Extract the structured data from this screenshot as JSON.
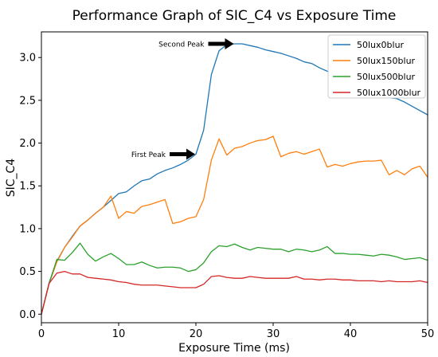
{
  "chart_data": {
    "type": "line",
    "title": "Performance Graph of SIC_C4 vs Exposure Time",
    "xlabel": "Exposure Time (ms)",
    "ylabel": "SIC_C4",
    "xlim": [
      0,
      50
    ],
    "ylim": [
      -0.1,
      3.3
    ],
    "xticks": [
      0,
      10,
      20,
      30,
      40,
      50
    ],
    "yticks": [
      0.0,
      0.5,
      1.0,
      1.5,
      2.0,
      2.5,
      3.0
    ],
    "ytick_labels": [
      "0.0",
      "0.5",
      "1.0",
      "1.5",
      "2.0",
      "2.5",
      "3.0"
    ],
    "grid": false,
    "legend_position": "top-right",
    "x": [
      0,
      1,
      2,
      3,
      4,
      5,
      6,
      7,
      8,
      9,
      10,
      11,
      12,
      13,
      14,
      15,
      16,
      17,
      18,
      19,
      20,
      21,
      22,
      23,
      24,
      25,
      26,
      27,
      28,
      29,
      30,
      31,
      32,
      33,
      34,
      35,
      36,
      37,
      38,
      39,
      40,
      41,
      42,
      43,
      44,
      45,
      46,
      47,
      48,
      49,
      50
    ],
    "series": [
      {
        "name": "50lux0blur",
        "color": "#1f77b4",
        "values": [
          0.0,
          0.37,
          0.62,
          0.78,
          0.91,
          1.03,
          1.1,
          1.18,
          1.25,
          1.33,
          1.41,
          1.43,
          1.5,
          1.56,
          1.58,
          1.64,
          1.68,
          1.71,
          1.75,
          1.8,
          1.87,
          2.15,
          2.8,
          3.08,
          3.15,
          3.16,
          3.16,
          3.14,
          3.12,
          3.09,
          3.07,
          3.05,
          3.02,
          2.99,
          2.95,
          2.93,
          2.88,
          2.84,
          2.8,
          2.76,
          2.72,
          2.69,
          2.65,
          2.61,
          2.57,
          2.53,
          2.52,
          2.48,
          2.43,
          2.38,
          2.33
        ]
      },
      {
        "name": "50lux150blur",
        "color": "#ff7f0e",
        "values": [
          0.0,
          0.36,
          0.61,
          0.78,
          0.9,
          1.03,
          1.1,
          1.18,
          1.25,
          1.38,
          1.12,
          1.2,
          1.18,
          1.26,
          1.28,
          1.31,
          1.34,
          1.06,
          1.08,
          1.12,
          1.14,
          1.34,
          1.8,
          2.05,
          1.86,
          1.94,
          1.96,
          2.0,
          2.03,
          2.04,
          2.08,
          1.84,
          1.88,
          1.9,
          1.87,
          1.9,
          1.93,
          1.72,
          1.75,
          1.73,
          1.76,
          1.78,
          1.79,
          1.79,
          1.8,
          1.63,
          1.68,
          1.63,
          1.7,
          1.73,
          1.6
        ]
      },
      {
        "name": "50lux500blur",
        "color": "#2ca02c",
        "values": [
          0.0,
          0.36,
          0.64,
          0.63,
          0.72,
          0.83,
          0.7,
          0.62,
          0.67,
          0.71,
          0.65,
          0.58,
          0.58,
          0.61,
          0.57,
          0.54,
          0.55,
          0.55,
          0.54,
          0.5,
          0.52,
          0.6,
          0.73,
          0.8,
          0.79,
          0.82,
          0.78,
          0.75,
          0.78,
          0.77,
          0.76,
          0.76,
          0.73,
          0.76,
          0.75,
          0.73,
          0.75,
          0.79,
          0.71,
          0.71,
          0.7,
          0.7,
          0.69,
          0.68,
          0.7,
          0.69,
          0.67,
          0.64,
          0.65,
          0.66,
          0.63
        ]
      },
      {
        "name": "50lux1000blur",
        "color": "#d62728",
        "values": [
          0.0,
          0.36,
          0.48,
          0.5,
          0.47,
          0.47,
          0.43,
          0.42,
          0.41,
          0.4,
          0.38,
          0.37,
          0.35,
          0.34,
          0.34,
          0.34,
          0.33,
          0.32,
          0.31,
          0.31,
          0.31,
          0.35,
          0.44,
          0.45,
          0.43,
          0.42,
          0.42,
          0.44,
          0.43,
          0.42,
          0.42,
          0.42,
          0.42,
          0.44,
          0.41,
          0.41,
          0.4,
          0.41,
          0.41,
          0.4,
          0.4,
          0.39,
          0.39,
          0.39,
          0.38,
          0.39,
          0.38,
          0.38,
          0.38,
          0.39,
          0.37
        ]
      }
    ],
    "annotations": [
      {
        "text": "First Peak",
        "xy": [
          20,
          1.87
        ]
      },
      {
        "text": "Second Peak",
        "xy": [
          25,
          3.16
        ]
      }
    ]
  }
}
